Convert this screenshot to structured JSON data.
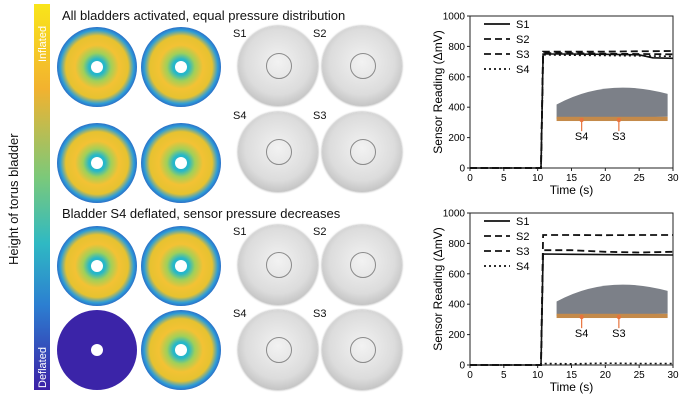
{
  "colorbar": {
    "top_label": "Inflated",
    "bottom_label": "Deflated",
    "axis_label": "Height of torus bladder"
  },
  "panel_top": {
    "title": "All bladders activated, equal pressure distribution",
    "labels": [
      "S1",
      "S2",
      "S4",
      "S3"
    ]
  },
  "panel_bottom": {
    "title": "Bladder S4 deflated, sensor pressure decreases",
    "labels": [
      "S1",
      "S2",
      "S4",
      "S3"
    ]
  },
  "chart_data": [
    {
      "type": "line",
      "xlabel": "Time (s)",
      "ylabel": "Sensor Reading (ΔmV)",
      "xlim": [
        0,
        30
      ],
      "ylim": [
        0,
        1000
      ],
      "xticks": [
        0,
        5,
        10,
        15,
        20,
        25,
        30
      ],
      "yticks": [
        0,
        200,
        400,
        600,
        800,
        1000
      ],
      "inset_labels": [
        "S4",
        "S3"
      ],
      "series": [
        {
          "name": "S1",
          "style": "solid",
          "x": [
            0,
            10.5,
            10.8,
            15,
            20,
            25,
            27,
            30
          ],
          "y": [
            0,
            0,
            750,
            750,
            748,
            745,
            725,
            722
          ]
        },
        {
          "name": "S2",
          "style": "dashed",
          "x": [
            0,
            10.5,
            10.8,
            15,
            20,
            25,
            30
          ],
          "y": [
            0,
            0,
            765,
            765,
            766,
            768,
            770
          ]
        },
        {
          "name": "S3",
          "style": "dashed",
          "x": [
            0,
            10.5,
            10.8,
            15,
            20,
            25,
            30
          ],
          "y": [
            0,
            0,
            755,
            755,
            752,
            750,
            748
          ]
        },
        {
          "name": "S4",
          "style": "dotted",
          "x": [
            0,
            10.5,
            10.8,
            15,
            20,
            25,
            30
          ],
          "y": [
            0,
            0,
            745,
            742,
            740,
            738,
            735
          ]
        }
      ]
    },
    {
      "type": "line",
      "xlabel": "Time (s)",
      "ylabel": "Sensor Reading (ΔmV)",
      "xlim": [
        0,
        30
      ],
      "ylim": [
        0,
        1000
      ],
      "xticks": [
        0,
        5,
        10,
        15,
        20,
        25,
        30
      ],
      "yticks": [
        0,
        200,
        400,
        600,
        800,
        1000
      ],
      "inset_labels": [
        "S4",
        "S3"
      ],
      "series": [
        {
          "name": "S1",
          "style": "solid",
          "x": [
            0,
            10.5,
            10.8,
            15,
            20,
            25,
            30
          ],
          "y": [
            0,
            0,
            730,
            728,
            726,
            725,
            724
          ]
        },
        {
          "name": "S2",
          "style": "dashed",
          "x": [
            0,
            10.5,
            10.8,
            15,
            20,
            25,
            30
          ],
          "y": [
            0,
            0,
            855,
            855,
            854,
            855,
            855
          ]
        },
        {
          "name": "S3",
          "style": "dashed",
          "x": [
            0,
            10.5,
            10.8,
            15,
            20,
            25,
            30
          ],
          "y": [
            0,
            0,
            755,
            755,
            745,
            740,
            745
          ]
        },
        {
          "name": "S4",
          "style": "dotted",
          "x": [
            0,
            10.5,
            11,
            15,
            20,
            25,
            30
          ],
          "y": [
            0,
            0,
            10,
            8,
            12,
            10,
            10
          ]
        }
      ]
    }
  ]
}
